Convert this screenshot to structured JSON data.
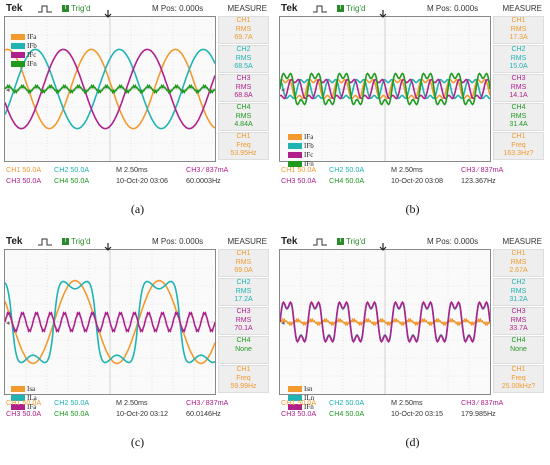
{
  "colors": {
    "ch1": "#f29a2e",
    "ch2": "#1fb3b3",
    "ch3": "#b0208d",
    "ch4": "#1f9a1f",
    "trig": "#2b8a2b"
  },
  "panels": [
    {
      "caption": "(a)",
      "tek": "Tek",
      "trig": "Trig'd",
      "mpos": "M Pos: 0.000s",
      "measure": "MEASURE",
      "measurements": [
        {
          "ch": "CH1",
          "label": "RMS",
          "value": "69.7A",
          "color": "#f29a2e"
        },
        {
          "ch": "CH2",
          "label": "RMS",
          "value": "68.5A",
          "color": "#1fb3b3"
        },
        {
          "ch": "CH3",
          "label": "RMS",
          "value": "68.8A",
          "color": "#b0208d"
        },
        {
          "ch": "CH4",
          "label": "RMS",
          "value": "4.84A",
          "color": "#1f9a1f"
        },
        {
          "ch": "CH1",
          "label": "Freq",
          "value": "53.95Hz",
          "color": "#f29a2e"
        }
      ],
      "footer": {
        "ch1": "CH1  50.0A",
        "ch2": "CH2  50.0A",
        "ch3": "CH3  50.0A",
        "ch4": "CH4  50.0A",
        "time": "M 2.50ms",
        "date": "10-Oct-20 03:06",
        "trigger": "CH3 ⁄ 837mA",
        "freq": "60.0003Hz"
      },
      "legend": [
        {
          "text": "IFa",
          "color": "#f29a2e"
        },
        {
          "text": "IFb",
          "color": "#1fb3b3"
        },
        {
          "text": "IFc",
          "color": "#b0208d"
        },
        {
          "text": "IFn",
          "color": "#1f9a1f"
        }
      ]
    },
    {
      "caption": "(b)",
      "tek": "Tek",
      "trig": "Trig'd",
      "mpos": "M Pos: 0.000s",
      "measure": "MEASURE",
      "measurements": [
        {
          "ch": "CH1",
          "label": "RMS",
          "value": "17.3A",
          "color": "#f29a2e"
        },
        {
          "ch": "CH2",
          "label": "RMS",
          "value": "15.0A",
          "color": "#1fb3b3"
        },
        {
          "ch": "CH3",
          "label": "RMS",
          "value": "14.1A",
          "color": "#b0208d"
        },
        {
          "ch": "CH4",
          "label": "RMS",
          "value": "31.4A",
          "color": "#1f9a1f"
        },
        {
          "ch": "CH1",
          "label": "Freq",
          "value": "163.3Hz?",
          "color": "#f29a2e"
        }
      ],
      "footer": {
        "ch1": "CH1  50.0A",
        "ch2": "CH2  50.0A",
        "ch3": "CH3  50.0A",
        "ch4": "CH4  50.0A",
        "time": "M 2.50ms",
        "date": "10-Oct-20 03:08",
        "trigger": "CH3 ⁄ 837mA",
        "freq": "123.367Hz"
      },
      "legend": [
        {
          "text": "IFa",
          "color": "#f29a2e"
        },
        {
          "text": "IFb",
          "color": "#1fb3b3"
        },
        {
          "text": "IFc",
          "color": "#b0208d"
        },
        {
          "text": "IFn",
          "color": "#1f9a1f"
        }
      ]
    },
    {
      "caption": "(c)",
      "tek": "Tek",
      "trig": "Trig'd",
      "mpos": "M Pos: 0.000s",
      "measure": "MEASURE",
      "measurements": [
        {
          "ch": "CH1",
          "label": "RMS",
          "value": "69.0A",
          "color": "#f29a2e"
        },
        {
          "ch": "CH2",
          "label": "RMS",
          "value": "17.2A",
          "color": "#1fb3b3"
        },
        {
          "ch": "CH3",
          "label": "RMS",
          "value": "70.1A",
          "color": "#b0208d"
        },
        {
          "ch": "CH4",
          "label": "",
          "value": "None",
          "color": "#1f9a1f"
        },
        {
          "ch": "CH1",
          "label": "Freq",
          "value": "59.99Hz",
          "color": "#f29a2e"
        }
      ],
      "footer": {
        "ch1": "CH1  50.0A",
        "ch2": "CH2  50.0A",
        "ch3": "CH3  50.0A",
        "ch4": "CH4  50.0A",
        "time": "M 2.50ms",
        "date": "10-Oct-20 03:12",
        "trigger": "CH3 ⁄ 837mA",
        "freq": "60.0146Hz"
      },
      "legend": [
        {
          "text": "Isa",
          "color": "#f29a2e"
        },
        {
          "text": "ILa",
          "color": "#1fb3b3"
        },
        {
          "text": "IFa",
          "color": "#b0208d"
        }
      ]
    },
    {
      "caption": "(d)",
      "tek": "Tek",
      "trig": "Trig'd",
      "mpos": "M Pos: 0.000s",
      "measure": "MEASURE",
      "measurements": [
        {
          "ch": "CH1",
          "label": "RMS",
          "value": "2.67A",
          "color": "#f29a2e"
        },
        {
          "ch": "CH2",
          "label": "RMS",
          "value": "31.2A",
          "color": "#1fb3b3"
        },
        {
          "ch": "CH3",
          "label": "RMS",
          "value": "33.7A",
          "color": "#b0208d"
        },
        {
          "ch": "CH4",
          "label": "",
          "value": "None",
          "color": "#1f9a1f"
        },
        {
          "ch": "CH1",
          "label": "Freq",
          "value": "25.00kHz?",
          "color": "#f29a2e"
        }
      ],
      "footer": {
        "ch1": "CH1  50.0A",
        "ch2": "CH2  50.0A",
        "ch3": "CH3  50.0A",
        "ch4": "CH4  50.0A",
        "time": "M 2.50ms",
        "date": "10-Oct-20 03:15",
        "trigger": "CH3 ⁄ 837mA",
        "freq": "179.985Hz"
      },
      "legend": [
        {
          "text": "Isn",
          "color": "#f29a2e"
        },
        {
          "text": "ILn",
          "color": "#1fb3b3"
        },
        {
          "text": "IFn",
          "color": "#b0208d"
        }
      ]
    }
  ],
  "chart_data": [
    {
      "type": "line",
      "title": "(a)",
      "x_div": [
        0,
        10
      ],
      "y_div": [
        -4,
        4
      ],
      "series": [
        {
          "name": "IFa",
          "type": "sine",
          "amplitude": 2.2,
          "cycles": 2.5,
          "phase_deg": 80
        },
        {
          "name": "IFb",
          "type": "sine",
          "amplitude": 2.2,
          "cycles": 2.5,
          "phase_deg": -40
        },
        {
          "name": "IFc",
          "type": "sine",
          "amplitude": 2.2,
          "cycles": 2.5,
          "phase_deg": 200
        },
        {
          "name": "IFn",
          "type": "ripple",
          "amplitude": 0.15,
          "cycles": 15
        }
      ]
    },
    {
      "type": "line",
      "title": "(b)",
      "x_div": [
        0,
        10
      ],
      "y_div": [
        -4,
        4
      ],
      "series": [
        {
          "name": "IFa",
          "type": "harmonic",
          "amplitude": 0.55,
          "cycles": 7.5,
          "phase_deg": 20
        },
        {
          "name": "IFb",
          "type": "harmonic",
          "amplitude": 0.55,
          "cycles": 7.5,
          "phase_deg": 140
        },
        {
          "name": "IFc",
          "type": "harmonic",
          "amplitude": 0.55,
          "cycles": 7.5,
          "phase_deg": 260
        },
        {
          "name": "IFn",
          "type": "harmonic",
          "amplitude": 0.9,
          "cycles": 7.5,
          "phase_deg": 0
        }
      ]
    },
    {
      "type": "line",
      "title": "(c)",
      "x_div": [
        0,
        10
      ],
      "y_div": [
        -4,
        4
      ],
      "series": [
        {
          "name": "Isa",
          "type": "sine",
          "amplitude": 2.3,
          "cycles": 2.5,
          "phase_deg": 150
        },
        {
          "name": "ILa",
          "type": "square",
          "amplitude": 2.1,
          "cycles": 2.5,
          "phase_deg": 150
        },
        {
          "name": "IFa",
          "type": "ripple",
          "amplitude": 0.5,
          "cycles": 15
        }
      ]
    },
    {
      "type": "line",
      "title": "(d)",
      "x_div": [
        0,
        10
      ],
      "y_div": [
        -4,
        4
      ],
      "series": [
        {
          "name": "Isn",
          "type": "ripple",
          "amplitude": 0.1,
          "cycles": 15
        },
        {
          "name": "ILn",
          "type": "harmonic",
          "amplitude": 1.1,
          "cycles": 7.5,
          "phase_deg": 0
        },
        {
          "name": "IFn",
          "type": "harmonic",
          "amplitude": 1.15,
          "cycles": 7.5,
          "phase_deg": 0
        }
      ]
    }
  ]
}
